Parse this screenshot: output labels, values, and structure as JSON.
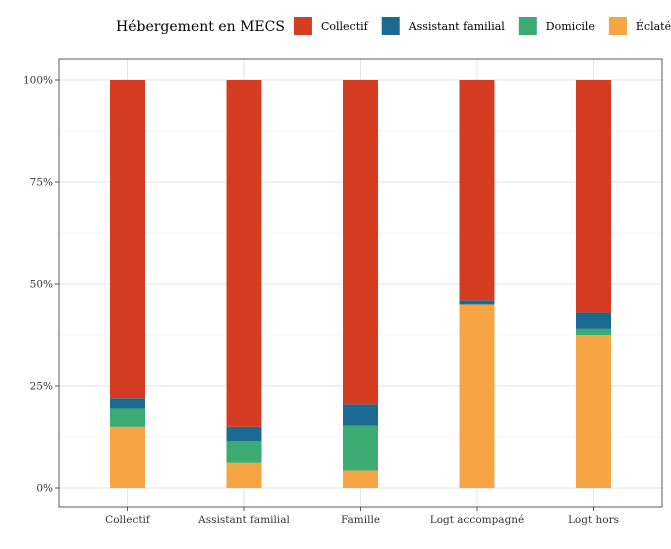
{
  "chart_data": {
    "type": "bar",
    "stacked": true,
    "percent": true,
    "legend": {
      "title": "Hébergement en MECS",
      "placement": "top"
    },
    "categories": [
      "Collectif",
      "Assistant familial",
      "Famille",
      "Logt accompagné",
      "Logt hors"
    ],
    "series": [
      {
        "name": "Collectif",
        "color": "#D43D22",
        "values": [
          78,
          85,
          79.5,
          54,
          57
        ]
      },
      {
        "name": "Assistant familial",
        "color": "#1A6A92",
        "values": [
          2.5,
          3.5,
          5.2,
          1,
          4
        ]
      },
      {
        "name": "Domicile",
        "color": "#3BAA73",
        "values": [
          4.5,
          5.3,
          11,
          0,
          1.5
        ]
      },
      {
        "name": "Éclaté",
        "color": "#F7A544",
        "values": [
          15,
          6.2,
          4.3,
          45,
          37.5
        ]
      }
    ],
    "ylim": [
      0,
      100
    ],
    "yticks": [
      0,
      25,
      50,
      75,
      100
    ],
    "ytick_labels": [
      "0%",
      "25%",
      "50%",
      "75%",
      "100%"
    ],
    "grid": true,
    "xlabel": "",
    "ylabel": ""
  }
}
